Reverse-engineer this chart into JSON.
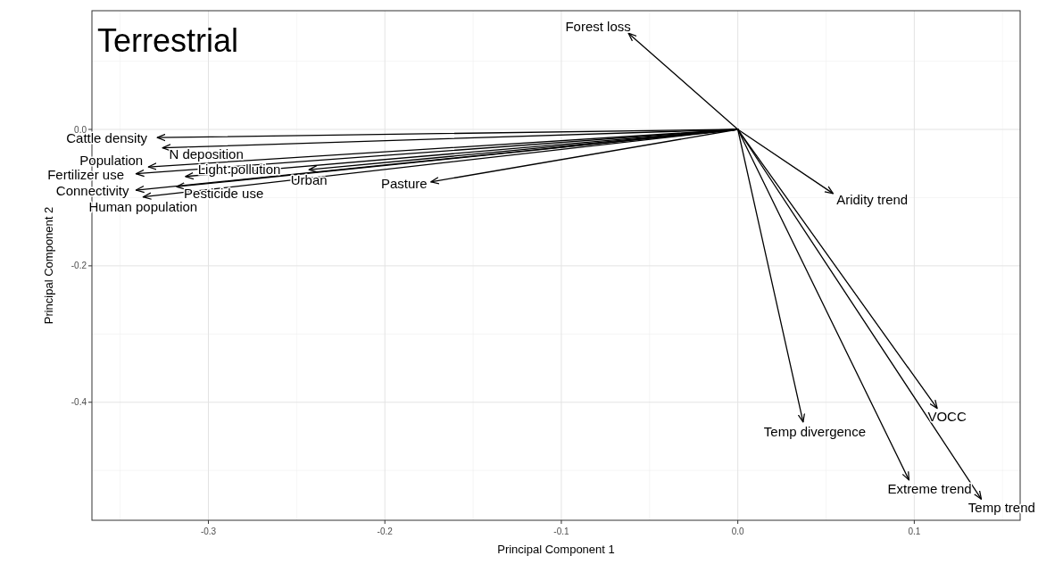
{
  "chart_data": {
    "type": "line",
    "title": "Terrestrial",
    "xlabel": "Principal Component 1",
    "ylabel": "Principal Component 2",
    "xlim": [
      -0.366,
      0.16
    ],
    "ylim": [
      -0.573,
      0.174
    ],
    "xticks": [
      {
        "value": -0.3,
        "label": "-0.3"
      },
      {
        "value": -0.2,
        "label": "-0.2"
      },
      {
        "value": -0.1,
        "label": "-0.1"
      },
      {
        "value": 0,
        "label": "0.0"
      },
      {
        "value": 0.1,
        "label": "0.1"
      }
    ],
    "yticks": [
      {
        "value": 0,
        "label": "0.0"
      },
      {
        "value": -0.2,
        "label": "-0.2"
      },
      {
        "value": -0.4,
        "label": "-0.4"
      }
    ],
    "grid": true,
    "series": [
      {
        "name": "Cattle density",
        "color": "#000000",
        "x": [
          0,
          -0.329
        ],
        "values": [
          0,
          -0.012
        ]
      },
      {
        "name": "N deposition",
        "color": "#000000",
        "x": [
          0,
          -0.326
        ],
        "values": [
          0,
          -0.027
        ]
      },
      {
        "name": "Population",
        "color": "#000000",
        "x": [
          0,
          -0.334
        ],
        "values": [
          0,
          -0.055
        ]
      },
      {
        "name": "Fertilizer use",
        "color": "#000000",
        "x": [
          0,
          -0.341
        ],
        "values": [
          0,
          -0.065
        ]
      },
      {
        "name": "Urban",
        "color": "#000000",
        "x": [
          0,
          -0.243
        ],
        "values": [
          0,
          -0.059
        ]
      },
      {
        "name": "Pasture",
        "color": "#000000",
        "x": [
          0,
          -0.174
        ],
        "values": [
          0,
          -0.077
        ]
      },
      {
        "name": "Light pollution",
        "color": "#000000",
        "x": [
          0,
          -0.313
        ],
        "values": [
          0,
          -0.069
        ]
      },
      {
        "name": "Connectivity",
        "color": "#000000",
        "x": [
          0,
          -0.341
        ],
        "values": [
          0,
          -0.089
        ]
      },
      {
        "name": "Human population",
        "color": "#000000",
        "x": [
          0,
          -0.337
        ],
        "values": [
          0,
          -0.099
        ]
      },
      {
        "name": "Pesticide use",
        "color": "#000000",
        "x": [
          0,
          -0.318
        ],
        "values": [
          0,
          -0.084
        ]
      },
      {
        "name": "Forest loss",
        "color": "#000000",
        "x": [
          0,
          -0.062
        ],
        "values": [
          0,
          0.141
        ]
      },
      {
        "name": "Aridity trend",
        "color": "#000000",
        "x": [
          0,
          0.054
        ],
        "values": [
          0,
          -0.094
        ]
      },
      {
        "name": "Temp divergence",
        "color": "#000000",
        "x": [
          0,
          0.037
        ],
        "values": [
          0,
          -0.429
        ]
      },
      {
        "name": "VOCC",
        "color": "#000000",
        "x": [
          0,
          0.113
        ],
        "values": [
          0,
          -0.409
        ]
      },
      {
        "name": "Extreme trend",
        "color": "#000000",
        "x": [
          0,
          0.097
        ],
        "values": [
          0,
          -0.514
        ]
      },
      {
        "name": "Temp trend",
        "color": "#000000",
        "x": [
          0,
          0.138
        ],
        "values": [
          0,
          -0.542
        ]
      }
    ]
  }
}
